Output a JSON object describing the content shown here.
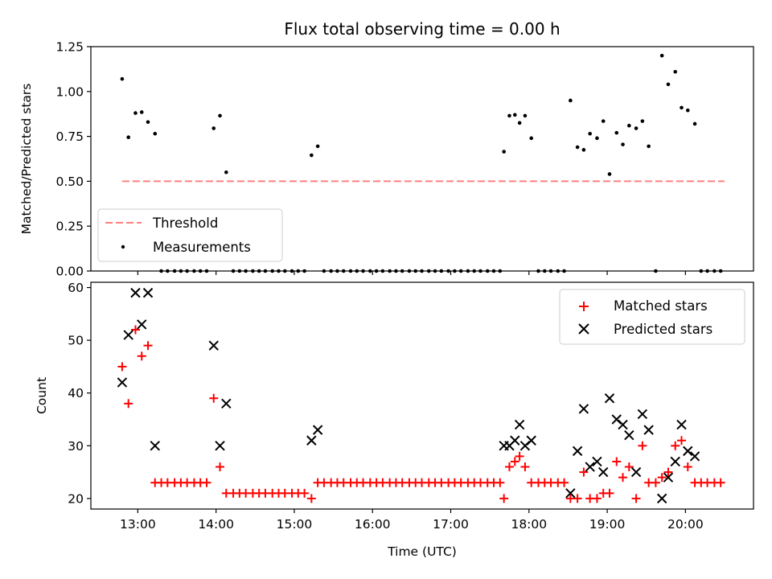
{
  "chart_data": [
    {
      "type": "scatter",
      "title": "Flux total observing time = 0.00 h",
      "xlabel": "",
      "ylabel": "Matched/Predicted stars",
      "xlim": [
        12.4,
        20.87
      ],
      "ylim": [
        0,
        1.25
      ],
      "yticks": [
        0,
        0.25,
        0.5,
        0.75,
        1.0,
        1.25
      ],
      "ytick_labels": [
        "0.00",
        "0.25",
        "0.50",
        "0.75",
        "1.00",
        "1.25"
      ],
      "xticks": [
        13,
        14,
        15,
        16,
        17,
        18,
        19,
        20
      ],
      "legend_position": "lower-left",
      "threshold": {
        "name": "Threshold",
        "value": 0.5,
        "x_range": [
          12.8,
          20.5
        ],
        "color": "#ff8080"
      },
      "series": [
        {
          "name": "Measurements",
          "color": "#000000",
          "x": [
            12.8,
            12.88,
            12.97,
            13.05,
            13.13,
            13.22,
            13.3,
            13.38,
            13.47,
            13.55,
            13.63,
            13.72,
            13.8,
            13.88,
            13.97,
            14.05,
            14.13,
            14.22,
            14.3,
            14.38,
            14.47,
            14.55,
            14.63,
            14.72,
            14.8,
            14.88,
            14.97,
            15.05,
            15.13,
            15.22,
            15.3,
            15.38,
            15.47,
            15.55,
            15.63,
            15.72,
            15.8,
            15.88,
            15.97,
            16.05,
            16.13,
            16.22,
            16.3,
            16.38,
            16.47,
            16.55,
            16.63,
            16.72,
            16.8,
            16.88,
            16.97,
            17.05,
            17.13,
            17.22,
            17.3,
            17.38,
            17.47,
            17.55,
            17.63,
            17.68,
            17.75,
            17.82,
            17.88,
            17.95,
            18.03,
            18.12,
            18.2,
            18.28,
            18.37,
            18.45,
            18.53,
            18.62,
            18.7,
            18.78,
            18.87,
            18.95,
            19.03,
            19.12,
            19.2,
            19.28,
            19.37,
            19.45,
            19.53,
            19.62,
            19.7,
            19.78,
            19.87,
            19.95,
            20.03,
            20.12,
            20.2,
            20.28,
            20.37,
            20.45
          ],
          "y": [
            1.07,
            0.745,
            0.88,
            0.885,
            0.83,
            0.765,
            0,
            0,
            0,
            0,
            0,
            0,
            0,
            0,
            0.795,
            0.865,
            0.55,
            0,
            0,
            0,
            0,
            0,
            0,
            0,
            0,
            0,
            0,
            0,
            0,
            0.645,
            0.695,
            0,
            0,
            0,
            0,
            0,
            0,
            0,
            0,
            0,
            0,
            0,
            0,
            0,
            0,
            0,
            0,
            0,
            0,
            0,
            0,
            0,
            0,
            0,
            0,
            0,
            0,
            0,
            0,
            0.665,
            0.865,
            0.87,
            0.825,
            0.865,
            0.74,
            0,
            0,
            0,
            0,
            0,
            0.95,
            0.69,
            0.675,
            0.765,
            0.74,
            0.835,
            0.54,
            0.77,
            0.705,
            0.81,
            0.795,
            0.835,
            0.695,
            0,
            1.2,
            1.04,
            1.11,
            0.91,
            0.895,
            0.82,
            0,
            0,
            0,
            0
          ]
        }
      ]
    },
    {
      "type": "scatter",
      "title": "",
      "xlabel": "Time (UTC)",
      "ylabel": "Count",
      "xlim": [
        12.4,
        20.87
      ],
      "ylim": [
        18,
        61
      ],
      "yticks": [
        20,
        30,
        40,
        50,
        60
      ],
      "xticks": [
        13,
        14,
        15,
        16,
        17,
        18,
        19,
        20
      ],
      "xtick_labels": [
        "13:00",
        "14:00",
        "15:00",
        "16:00",
        "17:00",
        "18:00",
        "19:00",
        "20:00"
      ],
      "legend_position": "upper-right",
      "series": [
        {
          "name": "Matched stars",
          "marker": "plus",
          "color": "#ff0000",
          "x": [
            12.8,
            12.88,
            12.97,
            13.05,
            13.13,
            13.22,
            13.3,
            13.38,
            13.47,
            13.55,
            13.63,
            13.72,
            13.8,
            13.88,
            13.97,
            14.05,
            14.13,
            14.22,
            14.3,
            14.38,
            14.47,
            14.55,
            14.63,
            14.72,
            14.8,
            14.88,
            14.97,
            15.05,
            15.13,
            15.22,
            15.3,
            15.38,
            15.47,
            15.55,
            15.63,
            15.72,
            15.8,
            15.88,
            15.97,
            16.05,
            16.13,
            16.22,
            16.3,
            16.38,
            16.47,
            16.55,
            16.63,
            16.72,
            16.8,
            16.88,
            16.97,
            17.05,
            17.13,
            17.22,
            17.3,
            17.38,
            17.47,
            17.55,
            17.63,
            17.68,
            17.75,
            17.82,
            17.88,
            17.95,
            18.03,
            18.12,
            18.2,
            18.28,
            18.37,
            18.45,
            18.53,
            18.62,
            18.7,
            18.78,
            18.87,
            18.95,
            19.03,
            19.12,
            19.2,
            19.28,
            19.37,
            19.45,
            19.53,
            19.62,
            19.7,
            19.78,
            19.87,
            19.95,
            20.03,
            20.12,
            20.2,
            20.28,
            20.37,
            20.45
          ],
          "y": [
            45,
            38,
            52,
            47,
            49,
            23,
            23,
            23,
            23,
            23,
            23,
            23,
            23,
            23,
            39,
            26,
            21,
            21,
            21,
            21,
            21,
            21,
            21,
            21,
            21,
            21,
            21,
            21,
            21,
            20,
            23,
            23,
            23,
            23,
            23,
            23,
            23,
            23,
            23,
            23,
            23,
            23,
            23,
            23,
            23,
            23,
            23,
            23,
            23,
            23,
            23,
            23,
            23,
            23,
            23,
            23,
            23,
            23,
            23,
            20,
            26,
            27,
            28,
            26,
            23,
            23,
            23,
            23,
            23,
            23,
            20,
            20,
            25,
            20,
            20,
            21,
            21,
            27,
            24,
            26,
            20,
            30,
            23,
            23,
            24,
            25,
            30,
            31,
            26,
            23,
            23,
            23,
            23,
            23
          ]
        },
        {
          "name": "Predicted stars",
          "marker": "x",
          "color": "#000000",
          "x": [
            12.8,
            12.88,
            12.97,
            13.05,
            13.13,
            13.22,
            13.97,
            14.05,
            14.13,
            15.22,
            15.3,
            17.68,
            17.75,
            17.82,
            17.88,
            17.95,
            18.03,
            18.53,
            18.62,
            18.7,
            18.78,
            18.87,
            18.95,
            19.03,
            19.12,
            19.2,
            19.28,
            19.37,
            19.45,
            19.53,
            19.7,
            19.78,
            19.87,
            19.95,
            20.03,
            20.12
          ],
          "y": [
            42,
            51,
            59,
            53,
            59,
            30,
            49,
            30,
            38,
            31,
            33,
            30,
            30,
            31,
            34,
            30,
            31,
            21,
            29,
            37,
            26,
            27,
            25,
            39,
            35,
            34,
            32,
            25,
            36,
            33,
            20,
            24,
            27,
            34,
            29,
            28
          ]
        }
      ]
    }
  ]
}
